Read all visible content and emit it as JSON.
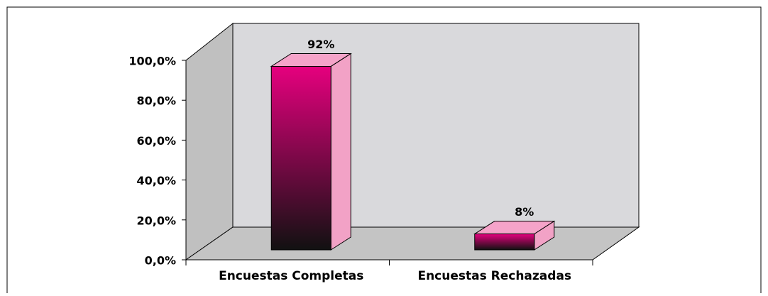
{
  "chart_data": {
    "type": "bar3d",
    "categories": [
      "Encuestas Completas",
      "Encuestas Rechazadas"
    ],
    "values": [
      92,
      8
    ],
    "value_labels": [
      "92%",
      "8%"
    ],
    "color": "#e6007e",
    "ylim": [
      0,
      100
    ],
    "yticks": [
      {
        "value": 0,
        "label": "0,0%"
      },
      {
        "value": 20,
        "label": "20,0%"
      },
      {
        "value": 40,
        "label": "40,0%"
      },
      {
        "value": 60,
        "label": "60,0%"
      },
      {
        "value": 80,
        "label": "80,0%"
      },
      {
        "value": 100,
        "label": "100,0%"
      }
    ]
  }
}
